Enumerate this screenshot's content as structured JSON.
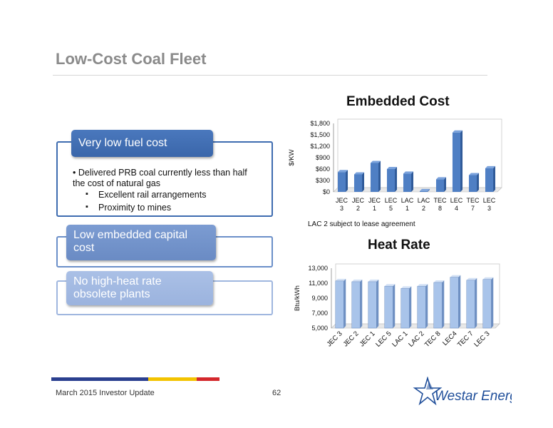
{
  "slide": {
    "title": "Low-Cost Coal Fleet"
  },
  "left": {
    "box1_label": "Very low fuel cost",
    "bullet": "• Delivered PRB coal currently less than half the cost of natural gas",
    "sub_items": [
      "Excellent rail arrangements",
      "Proximity to mines"
    ],
    "box2_label": "Low embedded capital cost",
    "box3_label": "No high-heat rate obsolete plants"
  },
  "colors": {
    "dark_blue": "#3e6cb0",
    "mid_blue": "#6b8fc9",
    "light_blue": "#9fb6df",
    "bar_blue": "#4f7fc4",
    "bar_light": "#a9c4ea",
    "footer_blue": "#2a3f8f",
    "footer_yellow": "#f3c300",
    "footer_red": "#d4282c"
  },
  "chart_data": [
    {
      "type": "bar",
      "title": "Embedded Cost",
      "ylabel": "$/KW",
      "xlabel": "",
      "categories": [
        [
          "JEC",
          "3"
        ],
        [
          "JEC",
          "2"
        ],
        [
          "JEC",
          "1"
        ],
        [
          "LEC",
          "5"
        ],
        [
          "LAC",
          "1"
        ],
        [
          "LAC",
          "2"
        ],
        [
          "TEC",
          "8"
        ],
        [
          "LEC",
          "4"
        ],
        [
          "TEC",
          "7"
        ],
        [
          "LEC",
          "3"
        ]
      ],
      "values": [
        520,
        460,
        760,
        600,
        480,
        20,
        330,
        1560,
        440,
        620
      ],
      "ylim": [
        0,
        1800
      ],
      "yticks": [
        0,
        300,
        600,
        900,
        1200,
        1500,
        1800
      ],
      "ytick_labels": [
        "$0",
        "$300",
        "$600",
        "$900",
        "$1,200",
        "$1,500",
        "$1,800"
      ],
      "note": "LAC 2 subject to lease agreement",
      "grid": false
    },
    {
      "type": "bar",
      "title": "Heat Rate",
      "ylabel": "Btu/kWh",
      "xlabel": "",
      "categories": [
        "JEC 3",
        "JEC 2",
        "JEC 1",
        "LEC 5",
        "LAC 1",
        "LAC 2",
        "TEC 8",
        "LEC4",
        "TEC 7",
        "LEC 3"
      ],
      "values": [
        11300,
        11200,
        11200,
        10600,
        10300,
        10600,
        11100,
        11800,
        11400,
        11500
      ],
      "ylim": [
        5000,
        13000
      ],
      "yticks": [
        5000,
        7000,
        9000,
        11000,
        13000
      ],
      "ytick_labels": [
        "5,000",
        "7,000",
        "9,000",
        "11,000",
        "13,000"
      ],
      "grid": false
    }
  ],
  "footer": {
    "text": "March 2015 Investor Update",
    "page": "62",
    "logo_text": "Westar Energy."
  }
}
